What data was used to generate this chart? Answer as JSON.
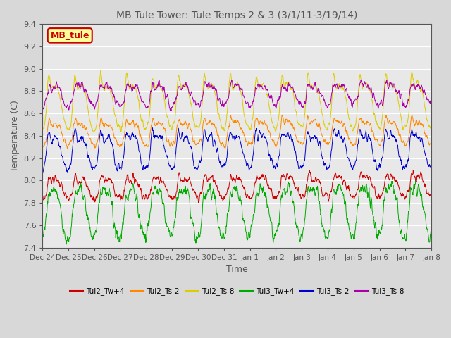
{
  "title": "MB Tule Tower: Tule Temps 2 & 3 (3/1/11-3/19/14)",
  "xlabel": "Time",
  "ylabel": "Temperature (C)",
  "ylim": [
    7.4,
    9.4
  ],
  "yticks": [
    7.4,
    7.6,
    7.8,
    8.0,
    8.2,
    8.4,
    8.6,
    8.8,
    9.0,
    9.2,
    9.4
  ],
  "xtick_labels": [
    "Dec 24",
    "Dec 25",
    "Dec 26",
    "Dec 27",
    "Dec 28",
    "Dec 29",
    "Dec 30",
    "Dec 31",
    "Jan 1",
    "Jan 2",
    "Jan 3",
    "Jan 4",
    "Jan 5",
    "Jan 6",
    "Jan 7",
    "Jan 8"
  ],
  "n_points": 1500,
  "n_days": 15,
  "series": [
    {
      "name": "Tul2_Tw+4",
      "color": "#cc0000",
      "base": 7.93,
      "trend": 0.022,
      "amp": 0.08,
      "spike_amp": 0.1,
      "noise": 0.04,
      "phase": 0.0
    },
    {
      "name": "Tul2_Ts-2",
      "color": "#ff8800",
      "base": 8.42,
      "trend": 0.02,
      "amp": 0.09,
      "spike_amp": 0.12,
      "noise": 0.03,
      "phase": 0.1
    },
    {
      "name": "Tul2_Ts-8",
      "color": "#ddcc00",
      "base": 8.67,
      "trend": 0.018,
      "amp": 0.18,
      "spike_amp": 0.25,
      "noise": 0.03,
      "phase": 0.15
    },
    {
      "name": "Tul3_Tw+4",
      "color": "#00aa00",
      "base": 7.72,
      "trend": 0.026,
      "amp": 0.2,
      "spike_amp": 0.1,
      "noise": 0.07,
      "phase": 0.3
    },
    {
      "name": "Tul3_Ts-2",
      "color": "#0000cc",
      "base": 8.26,
      "trend": 0.022,
      "amp": 0.13,
      "spike_amp": 0.15,
      "noise": 0.04,
      "phase": 0.2
    },
    {
      "name": "Tul3_Ts-8",
      "color": "#aa00aa",
      "base": 8.76,
      "trend": 0.016,
      "amp": 0.08,
      "spike_amp": 0.08,
      "noise": 0.04,
      "phase": 0.05
    }
  ],
  "legend_box": {
    "text": "MB_tule",
    "facecolor": "#ffff99",
    "edgecolor": "#cc0000",
    "textcolor": "#cc0000"
  },
  "background_color": "#d8d8d8",
  "plot_background": "#e8e8e8",
  "grid_color": "#ffffff",
  "title_color": "#555555",
  "axis_color": "#555555",
  "figsize": [
    6.4,
    4.8
  ],
  "dpi": 100
}
